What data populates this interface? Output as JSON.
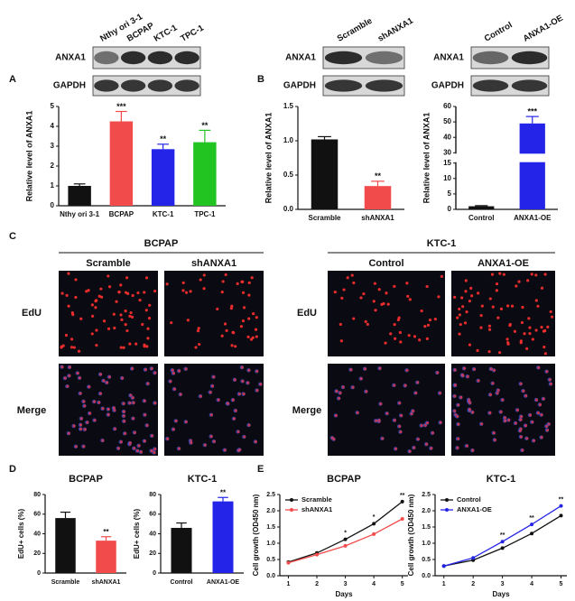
{
  "panel_labels": [
    "A",
    "B",
    "C",
    "D",
    "E"
  ],
  "blots": [
    {
      "lanes": [
        "Nthy ori 3-1",
        "BCPAP",
        "KTC-1",
        "TPC-1"
      ],
      "rows": [
        "ANXA1",
        "GAPDH"
      ]
    },
    {
      "lanes": [
        "Scramble",
        "shANXA1"
      ],
      "rows": [
        "ANXA1",
        "GAPDH"
      ]
    },
    {
      "lanes": [
        "Control",
        "ANXA1-OE"
      ],
      "rows": [
        "ANXA1",
        "GAPDH"
      ]
    }
  ],
  "edu": {
    "groups": [
      {
        "title": "BCPAP",
        "columns": [
          "Scramble",
          "shANXA1"
        ]
      },
      {
        "title": "KTC-1",
        "columns": [
          "Control",
          "ANXA1-OE"
        ]
      }
    ],
    "rows": [
      "EdU",
      "Merge"
    ]
  },
  "chart_data": [
    {
      "type": "bar",
      "ylabel": "Relative level of ANXA1",
      "categories": [
        "Nthy ori 3-1",
        "BCPAP",
        "KTC-1",
        "TPC-1"
      ],
      "values": [
        1.0,
        4.25,
        2.85,
        3.2
      ],
      "errors": [
        0.1,
        0.5,
        0.25,
        0.6
      ],
      "colors": [
        "#111111",
        "#f24b4b",
        "#2424e8",
        "#22c422"
      ],
      "annotations": [
        null,
        "***",
        "**",
        "**"
      ],
      "ylim": [
        0,
        5
      ],
      "yticks": [
        0,
        1,
        2,
        3,
        4,
        5
      ]
    },
    {
      "type": "bar",
      "ylabel": "Relative level of ANXA1",
      "categories": [
        "Scramble",
        "shANXA1"
      ],
      "values": [
        1.02,
        0.34
      ],
      "errors": [
        0.04,
        0.07
      ],
      "colors": [
        "#111111",
        "#f24b4b"
      ],
      "annotations": [
        null,
        "**"
      ],
      "ylim": [
        0,
        1.5
      ],
      "yticks": [
        {
          "value": 0,
          "label": "0.0"
        },
        {
          "value": 0.5,
          "label": "0.5"
        },
        {
          "value": 1,
          "label": "1.0"
        },
        {
          "value": 1.5,
          "label": "1.5"
        }
      ]
    },
    {
      "type": "bar",
      "ylabel": "Relative level of ANXA1",
      "categories": [
        "Control",
        "ANXA1-OE"
      ],
      "values": [
        1.0,
        49
      ],
      "errors": [
        0.2,
        4.5
      ],
      "colors": [
        "#111111",
        "#2424e8"
      ],
      "annotations": [
        null,
        "***"
      ],
      "ylim": [
        0,
        60
      ],
      "axis_break": [
        15,
        30
      ],
      "yticks": [
        0,
        5,
        10,
        15,
        30,
        40,
        50,
        60
      ]
    },
    {
      "type": "bar",
      "title": "BCPAP",
      "ylabel": "EdU+ cells (%)",
      "categories": [
        "Scramble",
        "shANXA1"
      ],
      "values": [
        56,
        33
      ],
      "errors": [
        6,
        4
      ],
      "colors": [
        "#111111",
        "#f24b4b"
      ],
      "annotations": [
        null,
        "**"
      ],
      "ylim": [
        0,
        80
      ],
      "yticks": [
        0,
        20,
        40,
        60,
        80
      ]
    },
    {
      "type": "bar",
      "title": "KTC-1",
      "ylabel": "EdU+ cells (%)",
      "categories": [
        "Control",
        "ANXA1-OE"
      ],
      "values": [
        46,
        73
      ],
      "errors": [
        5,
        4
      ],
      "colors": [
        "#111111",
        "#2424e8"
      ],
      "annotations": [
        null,
        "**"
      ],
      "ylim": [
        0,
        80
      ],
      "yticks": [
        0,
        20,
        40,
        60,
        80
      ]
    },
    {
      "type": "line",
      "title": "BCPAP",
      "ylabel": "Cell growth (OD450 nm)",
      "xlabel": "Days",
      "x": [
        1,
        2,
        3,
        4,
        5
      ],
      "xlim": [
        0.7,
        5.2
      ],
      "xticks": [
        1,
        2,
        3,
        4,
        5
      ],
      "ylim": [
        0,
        2.5
      ],
      "yticks": [
        {
          "value": 0,
          "label": "0.0"
        },
        {
          "value": 0.5,
          "label": "0.5"
        },
        {
          "value": 1,
          "label": "1.0"
        },
        {
          "value": 1.5,
          "label": "1.5"
        },
        {
          "value": 2,
          "label": "2.0"
        },
        {
          "value": 2.5,
          "label": "2.5"
        }
      ],
      "series": [
        {
          "name": "Scramble",
          "color": "#111111",
          "values": [
            0.42,
            0.7,
            1.12,
            1.6,
            2.28
          ]
        },
        {
          "name": "shANXA1",
          "color": "#f24b4b",
          "values": [
            0.4,
            0.65,
            0.92,
            1.28,
            1.75
          ]
        }
      ],
      "annotations": [
        null,
        null,
        "*",
        "*",
        "**"
      ]
    },
    {
      "type": "line",
      "title": "KTC-1",
      "ylabel": "Cell growth (OD450 nm)",
      "xlabel": "Days",
      "x": [
        1,
        2,
        3,
        4,
        5
      ],
      "xlim": [
        0.7,
        5.2
      ],
      "xticks": [
        1,
        2,
        3,
        4,
        5
      ],
      "ylim": [
        0,
        2.5
      ],
      "yticks": [
        {
          "value": 0,
          "label": "0.0"
        },
        {
          "value": 0.5,
          "label": "0.5"
        },
        {
          "value": 1,
          "label": "1.0"
        },
        {
          "value": 1.5,
          "label": "1.5"
        },
        {
          "value": 2,
          "label": "2.0"
        },
        {
          "value": 2.5,
          "label": "2.5"
        }
      ],
      "series": [
        {
          "name": "Control",
          "color": "#111111",
          "values": [
            0.3,
            0.48,
            0.85,
            1.3,
            1.85
          ]
        },
        {
          "name": "ANXA1-OE",
          "color": "#2424e8",
          "values": [
            0.3,
            0.55,
            1.05,
            1.58,
            2.15
          ]
        }
      ],
      "annotations": [
        null,
        null,
        "**",
        "**",
        "**"
      ]
    }
  ]
}
